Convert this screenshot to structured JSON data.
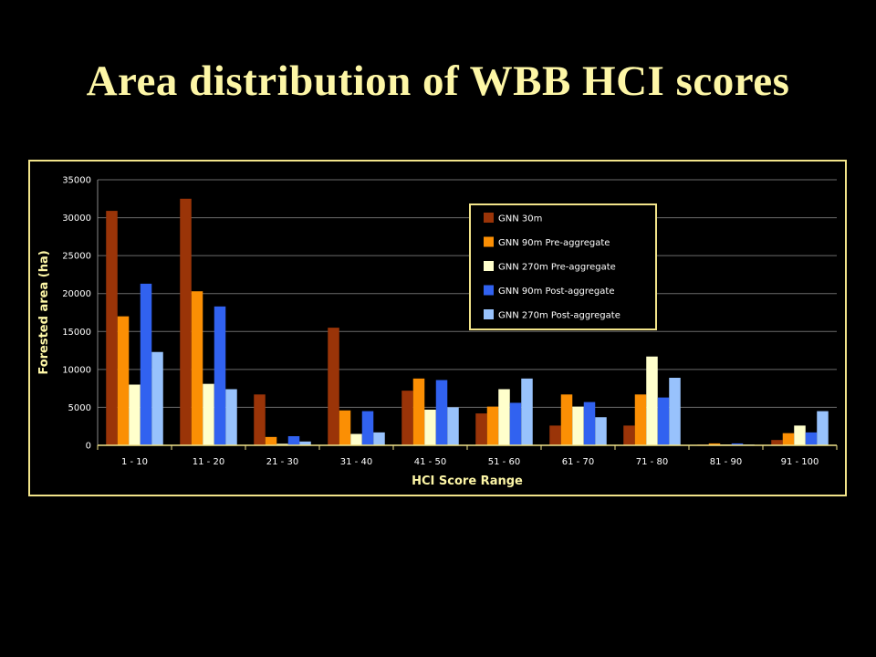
{
  "slide": {
    "title": "Area distribution of WBB HCI scores"
  },
  "chart_data": {
    "type": "bar",
    "xlabel": "HCI Score Range",
    "ylabel": "Forested area (ha)",
    "ylim": [
      0,
      35000
    ],
    "yticks": [
      0,
      5000,
      10000,
      15000,
      20000,
      25000,
      30000,
      35000
    ],
    "grid": true,
    "legend_position": "top-right",
    "categories": [
      "1 - 10",
      "11 - 20",
      "21 - 30",
      "31 - 40",
      "41 - 50",
      "51 - 60",
      "61 - 70",
      "71 - 80",
      "81 - 90",
      "91 - 100"
    ],
    "series": [
      {
        "name": "GNN 30m",
        "color": "#9a3408",
        "values": [
          30900,
          32500,
          6700,
          15500,
          7200,
          4200,
          2600,
          2600,
          100,
          700
        ]
      },
      {
        "name": "GNN 90m Pre-aggregate",
        "color": "#fb8f04",
        "values": [
          17000,
          20300,
          1100,
          4600,
          8800,
          5100,
          6700,
          6700,
          250,
          1600
        ]
      },
      {
        "name": "GNN 270m Pre-aggregate",
        "color": "#ffffcc",
        "values": [
          8000,
          8100,
          200,
          1500,
          4700,
          7400,
          5100,
          11700,
          100,
          2600
        ]
      },
      {
        "name": "GNN 90m Post-aggregate",
        "color": "#3162f0",
        "values": [
          21300,
          18300,
          1200,
          4500,
          8600,
          5600,
          5700,
          6300,
          250,
          1700
        ]
      },
      {
        "name": "GNN 270m Post-aggregate",
        "color": "#98c2fc",
        "values": [
          12300,
          7400,
          500,
          1700,
          5000,
          8800,
          3700,
          8900,
          100,
          4500
        ]
      }
    ]
  }
}
